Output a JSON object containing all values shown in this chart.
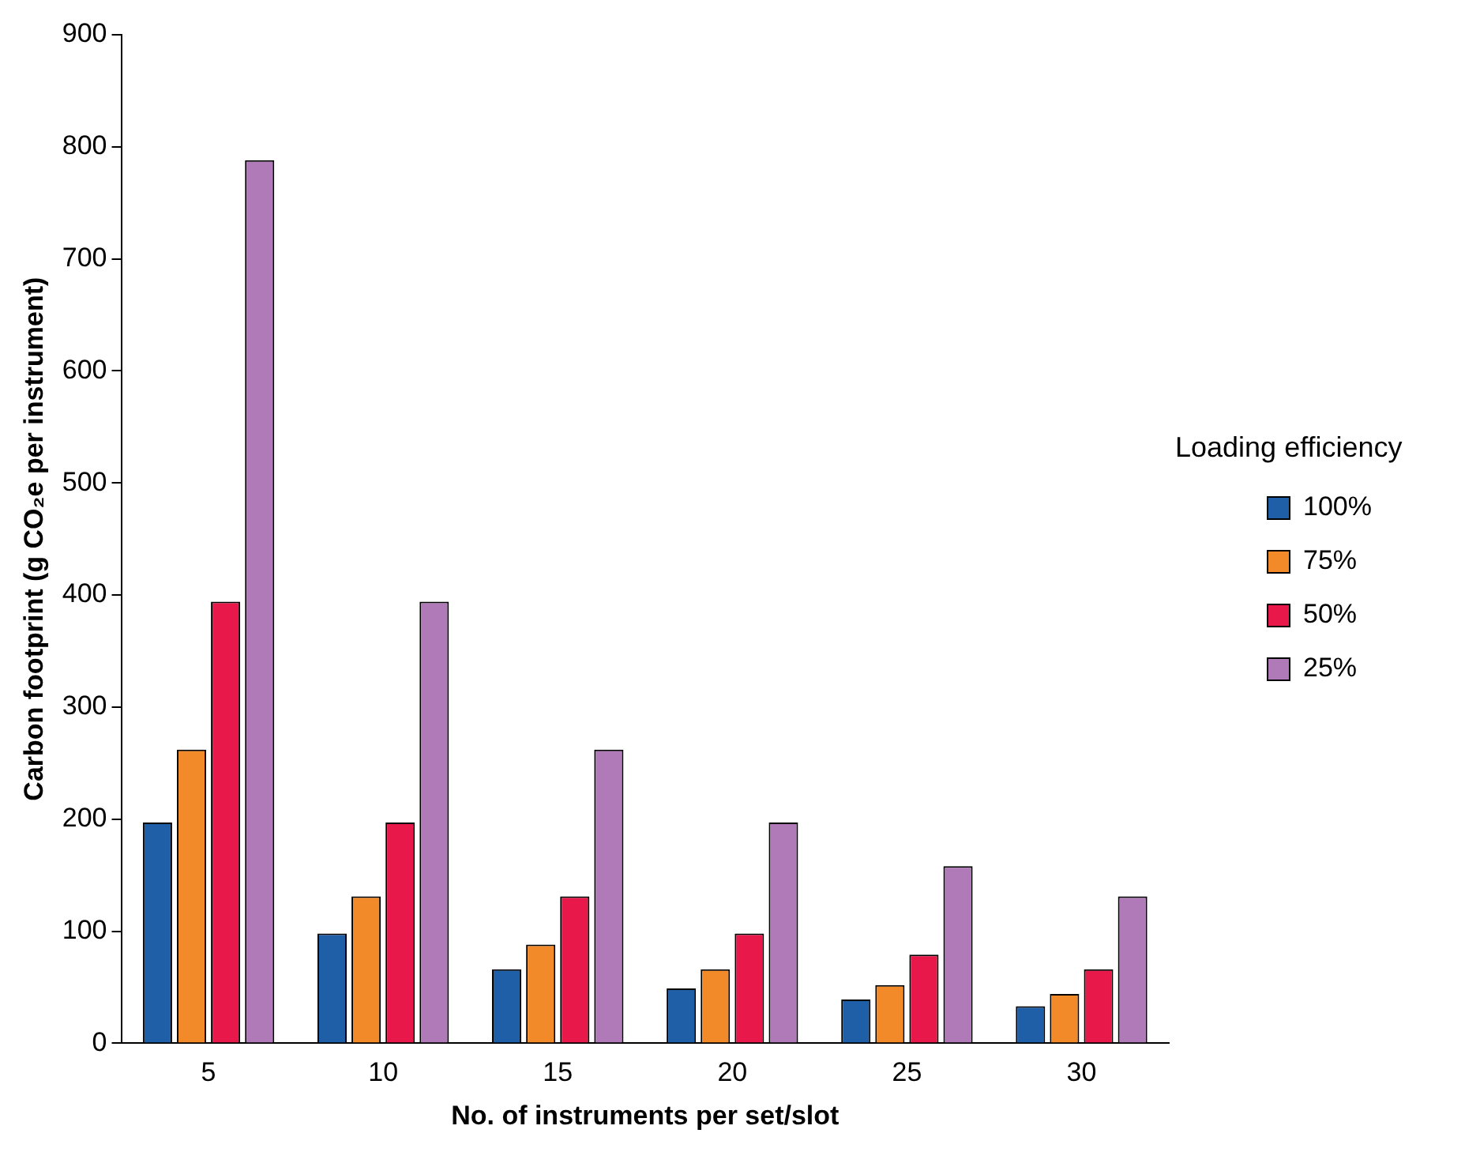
{
  "chart_data": {
    "type": "bar",
    "xlabel": "No. of instruments per set/slot",
    "ylabel": "Carbon footprint (g CO₂e per instrument)",
    "legend_title": "Loading efficiency",
    "categories": [
      "5",
      "10",
      "15",
      "20",
      "25",
      "30"
    ],
    "series": [
      {
        "name": "100%",
        "color": "#1f5fa8",
        "values": [
          197,
          98,
          66,
          49,
          39,
          33
        ]
      },
      {
        "name": "75%",
        "color": "#f28a2a",
        "values": [
          262,
          131,
          88,
          66,
          52,
          44
        ]
      },
      {
        "name": "50%",
        "color": "#e8194a",
        "values": [
          394,
          197,
          131,
          98,
          79,
          66
        ]
      },
      {
        "name": "25%",
        "color": "#b07ab8",
        "values": [
          788,
          394,
          262,
          197,
          158,
          131
        ]
      }
    ],
    "ylim": [
      0,
      900
    ],
    "yticks": [
      0,
      100,
      200,
      300,
      400,
      500,
      600,
      700,
      800,
      900
    ],
    "grid": false,
    "legend": "right"
  }
}
